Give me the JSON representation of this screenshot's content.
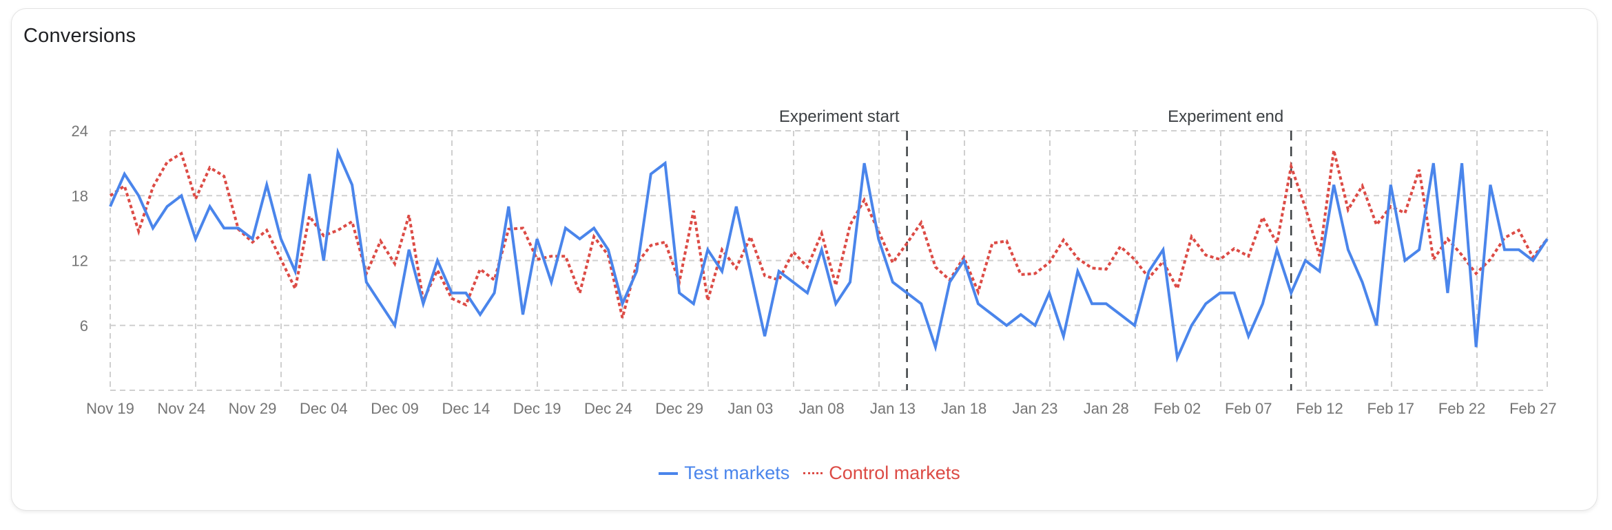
{
  "card": {
    "title": "Conversions"
  },
  "colors": {
    "test": "#4a85eb",
    "control": "#dc4b45",
    "grid": "#cfcfcf",
    "annotation_line": "#3c4043",
    "axis_text": "#757575"
  },
  "legend": {
    "items": [
      {
        "label": "Test markets",
        "style": "solid",
        "color": "#4a85eb"
      },
      {
        "label": "Control markets",
        "style": "dotted",
        "color": "#dc4b45"
      }
    ]
  },
  "chart_data": {
    "type": "line",
    "title": "Conversions",
    "xlabel": "",
    "ylabel": "",
    "ylim": [
      0,
      24
    ],
    "yticks": [
      6,
      12,
      18,
      24
    ],
    "grid": true,
    "legend_position": "bottom",
    "x_start": "Nov 19",
    "x_end": "Feb 28",
    "x_tick_labels": [
      "Nov 19",
      "Nov 24",
      "Nov 29",
      "Dec 04",
      "Dec 09",
      "Dec 14",
      "Dec 19",
      "Dec 24",
      "Dec 29",
      "Jan 03",
      "Jan 08",
      "Jan 13",
      "Jan 18",
      "Jan 23",
      "Jan 28",
      "Feb 02",
      "Feb 07",
      "Feb 12",
      "Feb 17",
      "Feb 22",
      "Feb 27"
    ],
    "x_tick_every_days": 5,
    "annotations": [
      {
        "label": "Experiment start",
        "day_index": 56,
        "date": "Jan 14"
      },
      {
        "label": "Experiment end",
        "day_index": 83,
        "date": "Feb 10"
      }
    ],
    "series": [
      {
        "name": "Test markets",
        "style": "solid",
        "values": [
          17,
          20,
          18,
          15,
          17,
          18,
          14,
          17,
          15,
          15,
          14,
          19,
          14,
          11,
          20,
          12,
          22,
          19,
          10,
          8,
          6,
          13,
          8,
          12,
          9,
          9,
          7,
          9,
          17,
          7,
          14,
          10,
          15,
          14,
          15,
          13,
          8,
          11,
          20,
          21,
          9,
          8,
          13,
          11,
          17,
          11,
          5,
          11,
          10,
          9,
          13,
          8,
          10,
          21,
          14,
          10,
          9,
          8,
          4,
          10,
          12,
          8,
          7,
          6,
          7,
          6,
          9,
          5,
          11,
          8,
          8,
          7,
          6,
          11,
          13,
          3,
          6,
          8,
          9,
          9,
          5,
          8,
          13,
          9,
          12,
          11,
          19,
          13,
          10,
          6,
          19,
          12,
          13,
          21,
          9,
          21,
          4,
          19,
          13,
          13,
          12,
          14
        ]
      },
      {
        "name": "Control markets",
        "style": "dotted",
        "values": [
          18,
          18.9,
          14.7,
          18.8,
          21.1,
          21.9,
          17.7,
          20.6,
          19.8,
          14.9,
          13.7,
          14.8,
          12.1,
          9.4,
          16.1,
          14.3,
          14.8,
          15.6,
          10.8,
          13.8,
          11.7,
          16.2,
          8.3,
          11.1,
          8.5,
          7.9,
          11.2,
          10.2,
          14.9,
          15.0,
          12.1,
          12.4,
          12.4,
          9.0,
          14.2,
          12.5,
          6.7,
          11.7,
          13.4,
          13.7,
          10.0,
          16.6,
          8.3,
          13.0,
          11.3,
          14.2,
          10.6,
          10.2,
          12.8,
          11.4,
          14.5,
          9.7,
          15.3,
          17.6,
          14.7,
          11.8,
          13.6,
          15.5,
          11.4,
          10.2,
          12.3,
          9.1,
          13.6,
          13.8,
          10.7,
          10.8,
          11.8,
          13.9,
          12.2,
          11.3,
          11.2,
          13.3,
          12.1,
          10.4,
          11.9,
          9.4,
          14.2,
          12.5,
          12.1,
          13.1,
          12.4,
          16.0,
          13.6,
          20.7,
          16.9,
          12.4,
          22.2,
          16.7,
          18.9,
          15.3,
          17.0,
          16.4,
          20.4,
          12.1,
          14.0,
          12.5,
          10.8,
          12.1,
          14.1,
          14.8,
          12.3,
          14.0
        ]
      }
    ]
  }
}
